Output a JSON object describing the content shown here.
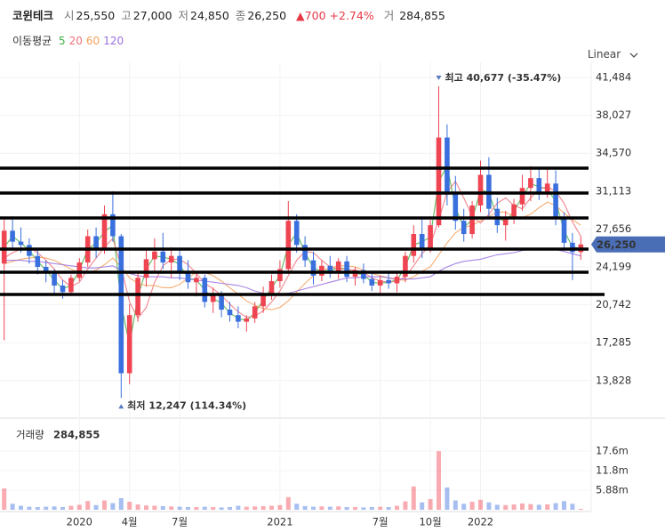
{
  "header": {
    "name": "코윈테크",
    "fields": [
      {
        "label": "시",
        "value": "25,550"
      },
      {
        "label": "고",
        "value": "27,000"
      },
      {
        "label": "저",
        "value": "24,850"
      },
      {
        "label": "종",
        "value": "26,250"
      }
    ],
    "change": "▲700",
    "change_pct": "+2.74%",
    "volume_label": "거",
    "volume_value": "284,855",
    "ma_title": "이동평균",
    "scale": "Linear"
  },
  "chart_data": {
    "type": "candlestick",
    "categories": [
      null,
      null,
      null,
      null,
      null,
      null,
      null,
      null,
      null,
      "2020",
      null,
      null,
      null,
      null,
      null,
      "4월",
      null,
      null,
      null,
      null,
      null,
      "7월",
      null,
      null,
      null,
      null,
      null,
      null,
      null,
      null,
      null,
      null,
      null,
      "2021",
      null,
      null,
      null,
      null,
      null,
      null,
      null,
      null,
      null,
      null,
      null,
      "7월",
      null,
      null,
      null,
      null,
      null,
      "10월",
      null,
      null,
      null,
      null,
      null,
      "2022",
      null,
      null,
      null,
      null,
      null,
      null,
      null,
      null,
      null,
      null,
      null,
      null
    ],
    "open": [
      24500,
      27500,
      26500,
      26200,
      25200,
      24200,
      23600,
      22500,
      21900,
      23200,
      24600,
      27000,
      25800,
      29000,
      27000,
      14500,
      19800,
      23200,
      24900,
      25600,
      24600,
      25200,
      23600,
      22800,
      23200,
      21000,
      21600,
      20300,
      19800,
      19200,
      19500,
      20600,
      21800,
      22900,
      24000,
      28400,
      26200,
      24800,
      23400,
      24300,
      23600,
      24700,
      23300,
      23900,
      23100,
      22500,
      23000,
      22700,
      23300,
      25200,
      27200,
      25900,
      28000,
      36000,
      30800,
      28400,
      27200,
      29800,
      32600,
      29500,
      28000,
      28700,
      29900,
      31400,
      32300,
      30800,
      31800,
      28600,
      26400,
      25550
    ],
    "high": [
      28600,
      28800,
      27800,
      26800,
      25800,
      24800,
      24000,
      23000,
      23500,
      25000,
      27600,
      27800,
      29800,
      31100,
      27200,
      20800,
      23800,
      25800,
      26800,
      27300,
      26000,
      25800,
      24800,
      23800,
      23500,
      22300,
      22000,
      21000,
      20600,
      19800,
      21000,
      22400,
      23500,
      24800,
      30200,
      29000,
      27000,
      25600,
      24800,
      25200,
      25000,
      25200,
      24200,
      24500,
      23600,
      23400,
      23800,
      23600,
      25600,
      28000,
      28800,
      28500,
      40677,
      37200,
      32500,
      29500,
      30200,
      33900,
      34200,
      30500,
      29300,
      30400,
      32600,
      33400,
      33100,
      33200,
      33000,
      29200,
      27300,
      27000
    ],
    "low": [
      17500,
      25800,
      25500,
      24500,
      23500,
      22800,
      21800,
      21300,
      21600,
      22900,
      24200,
      25000,
      25400,
      26500,
      12247,
      13500,
      19200,
      22400,
      23600,
      24000,
      23200,
      23000,
      22200,
      21500,
      20500,
      20000,
      19600,
      19200,
      18600,
      18300,
      19100,
      20000,
      21200,
      22300,
      23600,
      25500,
      24200,
      22600,
      22900,
      23200,
      23100,
      22800,
      22500,
      22700,
      22000,
      21600,
      22200,
      21900,
      22800,
      24600,
      25000,
      25500,
      27800,
      29800,
      27600,
      26500,
      26800,
      29200,
      28800,
      27300,
      26600,
      28100,
      29300,
      30200,
      30300,
      30500,
      28000,
      25800,
      23000,
      24850
    ],
    "close": [
      27500,
      26500,
      26200,
      25200,
      24200,
      23600,
      22500,
      21900,
      23200,
      24600,
      27000,
      25800,
      29000,
      27000,
      14500,
      19800,
      23200,
      24900,
      25600,
      24600,
      25200,
      23600,
      22800,
      23200,
      21000,
      21600,
      20300,
      19800,
      19200,
      19500,
      20600,
      21800,
      22900,
      24000,
      28400,
      26200,
      24800,
      23400,
      24300,
      23600,
      24700,
      23300,
      23900,
      23100,
      22500,
      23000,
      22700,
      23300,
      25200,
      27200,
      25900,
      28000,
      36000,
      30800,
      28400,
      27200,
      29800,
      32600,
      29500,
      28000,
      28700,
      29900,
      31400,
      32300,
      30800,
      31800,
      28600,
      26400,
      25550,
      26250
    ],
    "volume": [
      6400000,
      1800000,
      1200000,
      900000,
      800000,
      900000,
      1000000,
      800000,
      1200000,
      1500000,
      2600000,
      1400000,
      2800000,
      2000000,
      3500000,
      2400000,
      1600000,
      1300000,
      1200000,
      1100000,
      1000000,
      900000,
      800000,
      800000,
      900000,
      800000,
      700000,
      800000,
      1200000,
      900000,
      1000000,
      1100000,
      1200000,
      1400000,
      3800000,
      1800000,
      1100000,
      900000,
      1000000,
      900000,
      1000000,
      800000,
      800000,
      700000,
      800000,
      900000,
      800000,
      1200000,
      2500000,
      7000000,
      2200000,
      3200000,
      17600000,
      6700000,
      2800000,
      1800000,
      2400000,
      3000000,
      2200000,
      1500000,
      1400000,
      1600000,
      1900000,
      1700000,
      1500000,
      1600000,
      2000000,
      2600000,
      1800000,
      284855
    ],
    "up_color": "#ef4452",
    "down_color": "#3a6fde",
    "ma_series": [
      {
        "name": "5",
        "color": "#3fae3f",
        "values": [
          26000,
          27000,
          26400,
          25700,
          24700,
          23900,
          23000,
          22200,
          22500,
          23900,
          25800,
          26400,
          27400,
          28000,
          20800,
          17100,
          21500,
          24000,
          25200,
          25100,
          24900,
          24400,
          23200,
          23000,
          22100,
          21300,
          20900,
          20000,
          19500,
          19300,
          20000,
          21200,
          22300,
          23400,
          26200,
          27300,
          25500,
          24100,
          23800,
          23900,
          24100,
          24000,
          23600,
          23500,
          22800,
          22700,
          22800,
          23000,
          24200,
          26200,
          26500,
          26900,
          32000,
          33400,
          29600,
          27800,
          28500,
          31200,
          31000,
          28700,
          28300,
          29300,
          30600,
          31800,
          31500,
          31300,
          30200,
          27500,
          26000,
          25900
        ]
      },
      {
        "name": "20",
        "color": "#f0707a",
        "values": [
          25000,
          25500,
          25800,
          26000,
          25500,
          24800,
          24000,
          23000,
          22400,
          22800,
          24000,
          25000,
          26000,
          26800,
          24200,
          21000,
          19500,
          20500,
          22800,
          24300,
          24900,
          24900,
          24400,
          23600,
          22700,
          22200,
          21600,
          20800,
          20100,
          19600,
          19700,
          20200,
          21000,
          22000,
          23400,
          24800,
          25600,
          25500,
          24800,
          24200,
          24000,
          24000,
          23900,
          23700,
          23200,
          22900,
          22800,
          22900,
          23300,
          24300,
          25400,
          26200,
          28500,
          31000,
          32000,
          30500,
          28800,
          28200,
          29000,
          30000,
          30500,
          29800,
          29500,
          30500,
          31300,
          31500,
          31100,
          30000,
          28300,
          27000
        ]
      },
      {
        "name": "60",
        "color": "#f5a05a",
        "values": [
          24500,
          24700,
          24900,
          25000,
          25100,
          25000,
          24800,
          24400,
          24000,
          23700,
          23700,
          23900,
          24400,
          25000,
          24200,
          23200,
          22700,
          22500,
          22500,
          22300,
          22300,
          22600,
          23200,
          23700,
          23700,
          23400,
          22900,
          22300,
          21700,
          21100,
          20700,
          20400,
          20300,
          20500,
          21100,
          21900,
          22700,
          23400,
          23900,
          24100,
          24300,
          24300,
          24200,
          23900,
          23600,
          23400,
          23200,
          23000,
          23000,
          23300,
          23800,
          24200,
          25300,
          26400,
          27300,
          27800,
          28000,
          28400,
          28800,
          29200,
          29200,
          28800,
          28700,
          29000,
          29600,
          30100,
          29800,
          29100,
          28500,
          28000
        ]
      },
      {
        "name": "120",
        "color": "#9a6fe0",
        "values": [
          24800,
          24800,
          24800,
          24700,
          24700,
          24600,
          24500,
          24400,
          24300,
          24200,
          24100,
          24100,
          24200,
          24300,
          23900,
          23600,
          23400,
          23300,
          23300,
          23300,
          23200,
          23200,
          23100,
          23000,
          22900,
          22800,
          22700,
          22600,
          22500,
          22300,
          22000,
          21800,
          21700,
          21700,
          21800,
          22000,
          22200,
          22400,
          22600,
          22800,
          23000,
          23200,
          23200,
          23300,
          23300,
          23300,
          23200,
          23100,
          23100,
          23100,
          23200,
          23300,
          23800,
          24200,
          24500,
          24700,
          24800,
          24900,
          25100,
          25300,
          25400,
          25500,
          25700,
          25800,
          25900,
          25900,
          25800,
          25600,
          25400,
          25200
        ]
      }
    ],
    "ylim": [
      10810,
      42864
    ],
    "yticks": [
      {
        "value": 41484,
        "label": "41,484"
      },
      {
        "value": 38027,
        "label": "38,027"
      },
      {
        "value": 34570,
        "label": "34,570"
      },
      {
        "value": 31113,
        "label": "31,113"
      },
      {
        "value": 27656,
        "label": "27,656"
      },
      {
        "value": 24199,
        "label": "24,199"
      },
      {
        "value": 20742,
        "label": "20,742"
      },
      {
        "value": 17285,
        "label": "17,285"
      },
      {
        "value": 13828,
        "label": "13,828"
      }
    ],
    "current_price": {
      "value": 26250,
      "label": "26,250"
    },
    "high_note": {
      "value": 40677,
      "label": "최고 40,677 (-35.47%)"
    },
    "low_note": {
      "value": 12247,
      "label": "최저 12,247 (114.34%)"
    },
    "drawn_lines": [
      33207,
      30935,
      28662,
      25822,
      23712,
      21684
    ],
    "volume_title": "거래량",
    "volume_value": "284,855",
    "vlim": [
      0,
      26200000
    ],
    "vticks": [
      {
        "value": 17600000,
        "label": "17.6m"
      },
      {
        "value": 11800000,
        "label": "11.8m"
      },
      {
        "value": 5880000,
        "label": "5.88m"
      }
    ]
  }
}
